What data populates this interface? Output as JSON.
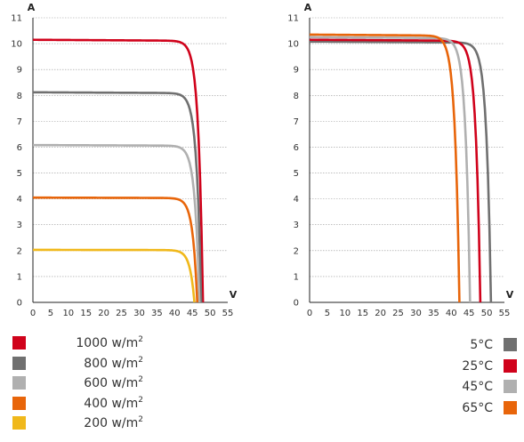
{
  "chart_data": [
    {
      "type": "line",
      "title": "",
      "xlabel": "V",
      "ylabel": "A",
      "xlim": [
        0,
        55
      ],
      "ylim": [
        0,
        11
      ],
      "xticks": [
        0,
        5,
        10,
        15,
        20,
        25,
        30,
        35,
        40,
        45,
        50,
        55
      ],
      "yticks": [
        0,
        1,
        2,
        3,
        4,
        5,
        6,
        7,
        8,
        9,
        10,
        11
      ],
      "grid": "horizontal dashed",
      "legend_position": "bottom-left",
      "series": [
        {
          "name": "1000 w/m2",
          "label": "1000 w/m",
          "label_sup": "2",
          "color": "#d0021b",
          "isc": 10.15,
          "voc": 48.0
        },
        {
          "name": "800 w/m2",
          "label": "800 w/m",
          "label_sup": "2",
          "color": "#707070",
          "isc": 8.12,
          "voc": 47.5
        },
        {
          "name": "600 w/m2",
          "label": "600 w/m",
          "label_sup": "2",
          "color": "#b0b0b0",
          "isc": 6.08,
          "voc": 47.0
        },
        {
          "name": "400 w/m2",
          "label": "400 w/m",
          "label_sup": "2",
          "color": "#e8650a",
          "isc": 4.05,
          "voc": 46.4
        },
        {
          "name": "200 w/m2",
          "label": "200 w/m",
          "label_sup": "2",
          "color": "#f0b81b",
          "isc": 2.03,
          "voc": 45.6
        }
      ]
    },
    {
      "type": "line",
      "title": "",
      "xlabel": "V",
      "ylabel": "A",
      "xlim": [
        0,
        55
      ],
      "ylim": [
        0,
        11
      ],
      "xticks": [
        0,
        5,
        10,
        15,
        20,
        25,
        30,
        35,
        40,
        45,
        50,
        55
      ],
      "yticks": [
        0,
        1,
        2,
        3,
        4,
        5,
        6,
        7,
        8,
        9,
        10,
        11
      ],
      "grid": "horizontal dashed",
      "legend_position": "bottom-right",
      "series": [
        {
          "name": "5°C",
          "label": "5°C",
          "color": "#707070",
          "isc": 10.08,
          "voc": 51.2
        },
        {
          "name": "25°C",
          "label": "25°C",
          "color": "#d0021b",
          "isc": 10.15,
          "voc": 48.2
        },
        {
          "name": "45°C",
          "label": "45°C",
          "color": "#b0b0b0",
          "isc": 10.25,
          "voc": 45.3
        },
        {
          "name": "65°C",
          "label": "65°C",
          "color": "#e8650a",
          "isc": 10.35,
          "voc": 42.3
        }
      ]
    }
  ]
}
